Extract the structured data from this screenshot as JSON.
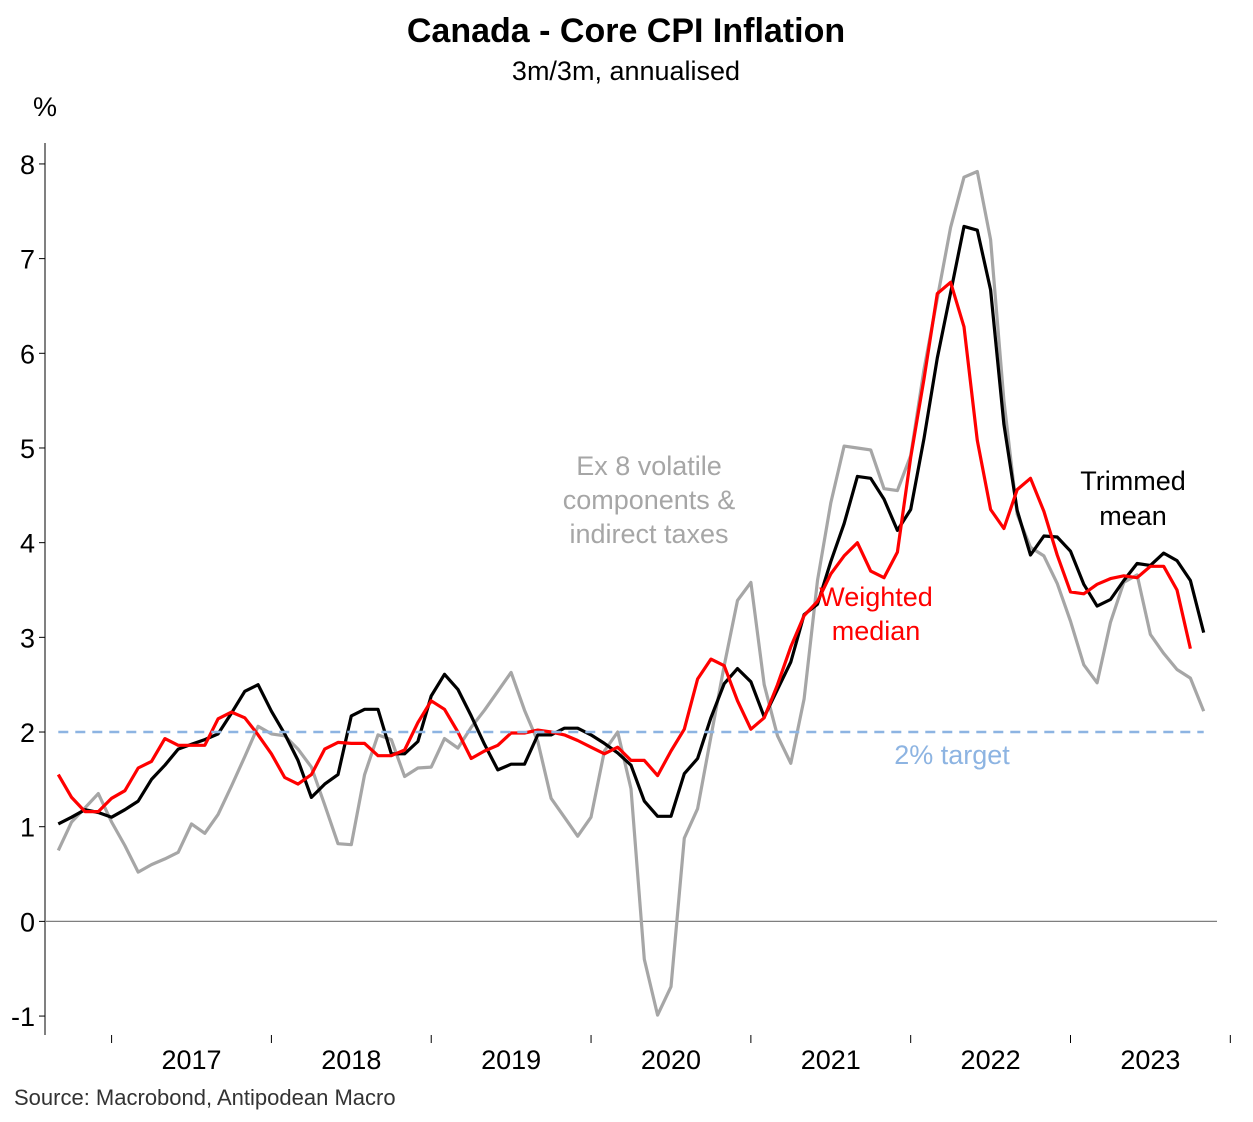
{
  "chart_data": {
    "type": "line",
    "title": "Canada - Core CPI Inflation",
    "subtitle": "3m/3m, annualised",
    "ylabel": "%",
    "ylim": [
      -1.2,
      8.2
    ],
    "yticks": [
      -1,
      0,
      1,
      2,
      3,
      4,
      5,
      6,
      7,
      8
    ],
    "xlim": [
      "2016-08",
      "2023-12"
    ],
    "xtick_labels": [
      "2017",
      "2018",
      "2019",
      "2020",
      "2021",
      "2022",
      "2023"
    ],
    "grid": false,
    "start_month": "2016-09",
    "series": [
      {
        "color": "#a6a6a6",
        "values": [
          0.75,
          1.05,
          1.2,
          1.35,
          1.05,
          0.8,
          0.52,
          0.6,
          0.66,
          0.73,
          1.03,
          0.93,
          1.13,
          1.43,
          1.74,
          2.06,
          1.98,
          1.96,
          1.82,
          1.63,
          1.23,
          0.82,
          0.81,
          1.55,
          1.97,
          1.92,
          1.53,
          1.62,
          1.63,
          1.93,
          1.83,
          2.05,
          2.23,
          2.43,
          2.63,
          2.23,
          1.9,
          1.3,
          1.1,
          0.9,
          1.1,
          1.8,
          2.0,
          1.4,
          -0.4,
          -0.99,
          -0.69,
          0.88,
          1.19,
          1.95,
          2.7,
          3.39,
          3.58,
          2.5,
          1.96,
          1.67,
          2.35,
          3.6,
          4.42,
          5.02,
          5.0,
          4.98,
          4.57,
          4.55,
          4.92,
          5.83,
          6.58,
          7.33,
          7.86,
          7.92,
          7.2,
          5.5,
          4.3,
          3.95,
          3.86,
          3.57,
          3.17,
          2.71,
          2.52,
          3.16,
          3.58,
          3.66,
          3.03,
          2.83,
          2.66,
          2.57,
          2.22
        ]
      },
      {
        "color": "#000000",
        "values": [
          1.03,
          1.1,
          1.18,
          1.15,
          1.1,
          1.18,
          1.27,
          1.5,
          1.65,
          1.82,
          1.87,
          1.92,
          1.98,
          2.2,
          2.43,
          2.5,
          2.22,
          1.98,
          1.7,
          1.31,
          1.45,
          1.55,
          2.17,
          2.24,
          2.24,
          1.77,
          1.77,
          1.9,
          2.38,
          2.61,
          2.45,
          2.17,
          1.87,
          1.6,
          1.66,
          1.66,
          1.97,
          1.97,
          2.04,
          2.04,
          1.97,
          1.88,
          1.78,
          1.65,
          1.27,
          1.11,
          1.11,
          1.56,
          1.72,
          2.15,
          2.51,
          2.67,
          2.53,
          2.16,
          2.45,
          2.74,
          3.24,
          3.35,
          3.8,
          4.2,
          4.7,
          4.68,
          4.46,
          4.13,
          4.35,
          5.1,
          5.95,
          6.64,
          7.34,
          7.3,
          6.67,
          5.25,
          4.34,
          3.87,
          4.07,
          4.06,
          3.91,
          3.56,
          3.33,
          3.4,
          3.6,
          3.78,
          3.76,
          3.89,
          3.81,
          3.6,
          3.05
        ]
      },
      {
        "color": "#ff0000",
        "values": [
          1.55,
          1.31,
          1.16,
          1.16,
          1.3,
          1.38,
          1.62,
          1.69,
          1.93,
          1.86,
          1.86,
          1.86,
          2.14,
          2.21,
          2.15,
          1.97,
          1.77,
          1.52,
          1.45,
          1.55,
          1.82,
          1.89,
          1.88,
          1.88,
          1.75,
          1.75,
          1.81,
          2.1,
          2.33,
          2.24,
          2.0,
          1.72,
          1.8,
          1.86,
          1.99,
          1.99,
          2.02,
          2.0,
          1.97,
          1.91,
          1.84,
          1.77,
          1.84,
          1.7,
          1.7,
          1.54,
          1.8,
          2.03,
          2.56,
          2.77,
          2.7,
          2.33,
          2.03,
          2.15,
          2.5,
          2.9,
          3.23,
          3.38,
          3.67,
          3.86,
          4.0,
          3.7,
          3.63,
          3.9,
          4.9,
          5.73,
          6.63,
          6.75,
          6.28,
          5.08,
          4.35,
          4.15,
          4.56,
          4.68,
          4.33,
          3.87,
          3.48,
          3.46,
          3.56,
          3.62,
          3.65,
          3.63,
          3.75,
          3.75,
          3.5,
          2.88
        ]
      },
      {
        "name": "2% target",
        "color": "#8db4e2",
        "dash": true,
        "x": [
          "2016-09",
          "2023-11"
        ],
        "values": [
          2,
          2
        ]
      }
    ],
    "annotations": [
      {
        "lines": [
          "Ex 8 volatile",
          "components &",
          "indirect taxes"
        ],
        "color": "#a6a6a6"
      },
      {
        "lines": [
          "Trimmed",
          "mean"
        ],
        "color": "#000000"
      },
      {
        "lines": [
          "Weighted",
          "median"
        ],
        "color": "#ff0000"
      },
      {
        "lines": [
          "2% target"
        ],
        "color": "#8db4e2"
      }
    ],
    "source": "Source: Macrobond, Antipodean Macro"
  }
}
